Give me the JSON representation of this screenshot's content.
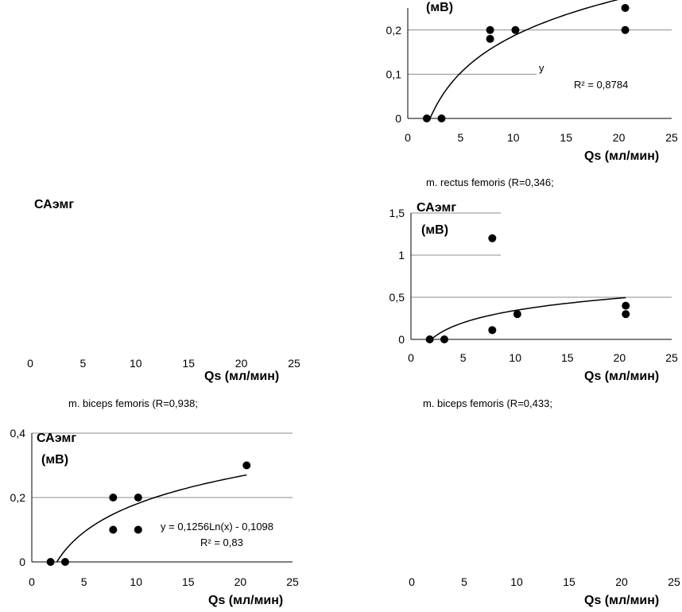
{
  "chart_data": [
    {
      "type": "scatter",
      "panel": "top-right",
      "ylabel": "(мВ)",
      "xlabel": "Qs (мл/мин)",
      "xlim": [
        0,
        25
      ],
      "ylim": [
        0,
        0.25
      ],
      "xticks": [
        "0",
        "5",
        "10",
        "15",
        "20",
        "25"
      ],
      "yticks": [
        {
          "v": 0,
          "label": "0"
        },
        {
          "v": 0.1,
          "label": "0,1"
        },
        {
          "v": 0.2,
          "label": "0,2"
        }
      ],
      "points": [
        [
          1.8,
          0
        ],
        [
          3.2,
          0
        ],
        [
          7.8,
          0.2
        ],
        [
          7.8,
          0.18
        ],
        [
          10.2,
          0.2
        ],
        [
          20.6,
          0.25
        ],
        [
          20.6,
          0.2
        ]
      ],
      "trend": {
        "a": 0.12,
        "b": -0.09,
        "x0": 2.1,
        "x1": 20.6
      },
      "equation": "y",
      "r2": "R² = 0,8784",
      "caption": "m. rectus femoris (R=0,346;"
    },
    {
      "type": "scatter",
      "panel": "middle-left",
      "ylabel": "САэмг",
      "xlabel": "Qs (мл/мин)",
      "xlim": [
        0,
        25
      ],
      "xticks": [
        "0",
        "5",
        "10",
        "15",
        "20",
        "25"
      ],
      "caption": "m. biceps femoris (R=0,938;"
    },
    {
      "type": "scatter",
      "panel": "middle-right",
      "ylabel": "САэмг",
      "yunit": "(мВ)",
      "xlabel": "Qs (мл/мин)",
      "xlim": [
        0,
        25
      ],
      "ylim": [
        0,
        1.5
      ],
      "xticks": [
        "0",
        "5",
        "10",
        "15",
        "20",
        "25"
      ],
      "yticks": [
        {
          "v": 0,
          "label": "0"
        },
        {
          "v": 0.5,
          "label": "0,5"
        },
        {
          "v": 1,
          "label": "1"
        },
        {
          "v": 1.5,
          "label": "1,5"
        }
      ],
      "points": [
        [
          1.8,
          0
        ],
        [
          3.2,
          0
        ],
        [
          7.8,
          1.2
        ],
        [
          7.8,
          0.11
        ],
        [
          10.2,
          0.3
        ],
        [
          20.6,
          0.4
        ],
        [
          20.6,
          0.3
        ]
      ],
      "trend": {
        "a": 0.21,
        "b": -0.14,
        "x0": 1.9,
        "x1": 20.6
      },
      "caption": "m. biceps femoris (R=0,433;"
    },
    {
      "type": "scatter",
      "panel": "bottom-left",
      "ylabel": "САэмг",
      "yunit": "(мВ)",
      "xlabel": "Qs (мл/мин)",
      "xlim": [
        0,
        25
      ],
      "ylim": [
        0,
        0.4
      ],
      "xticks": [
        "0",
        "5",
        "10",
        "15",
        "20",
        "25"
      ],
      "yticks": [
        {
          "v": 0,
          "label": "0"
        },
        {
          "v": 0.2,
          "label": "0,2"
        },
        {
          "v": 0.4,
          "label": "0,4"
        }
      ],
      "points": [
        [
          1.8,
          0
        ],
        [
          3.2,
          0
        ],
        [
          7.8,
          0.2
        ],
        [
          7.8,
          0.1
        ],
        [
          10.2,
          0.2
        ],
        [
          10.2,
          0.1
        ],
        [
          20.6,
          0.3
        ]
      ],
      "trend": {
        "a": 0.1256,
        "b": -0.1098,
        "x0": 2.4,
        "x1": 20.6
      },
      "equation": "y = 0,1256Ln(x) - 0,1098",
      "r2": "R² = 0,83"
    },
    {
      "type": "scatter",
      "panel": "bottom-right",
      "xlabel": "Qs (мл/мин)",
      "xlim": [
        0,
        25
      ],
      "xticks": [
        "0",
        "5",
        "10",
        "15",
        "20",
        "25"
      ]
    }
  ]
}
